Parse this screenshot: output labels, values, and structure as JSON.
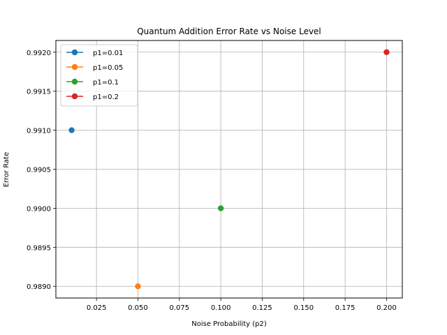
{
  "chart_data": {
    "type": "scatter",
    "title": "Quantum Addition Error Rate vs Noise Level",
    "xlabel": "Noise Probability (p2)",
    "ylabel": "Error Rate",
    "xlim": [
      0.0005,
      0.2095
    ],
    "ylim": [
      0.98885,
      0.99215
    ],
    "xticks": [
      0.025,
      0.05,
      0.075,
      0.1,
      0.125,
      0.15,
      0.175,
      0.2
    ],
    "xtick_labels": [
      "0.025",
      "0.050",
      "0.075",
      "0.100",
      "0.125",
      "0.150",
      "0.175",
      "0.200"
    ],
    "yticks": [
      0.989,
      0.9895,
      0.99,
      0.9905,
      0.991,
      0.9915,
      0.992
    ],
    "ytick_labels": [
      "0.9890",
      "0.9895",
      "0.9900",
      "0.9905",
      "0.9910",
      "0.9915",
      "0.9920"
    ],
    "grid": true,
    "legend_position": "top-left",
    "series": [
      {
        "name": "p1=0.01",
        "color": "#1f77b4",
        "x": [
          0.01
        ],
        "y": [
          0.991
        ]
      },
      {
        "name": "p1=0.05",
        "color": "#ff7f0e",
        "x": [
          0.05
        ],
        "y": [
          0.989
        ]
      },
      {
        "name": "p1=0.1",
        "color": "#2ca02c",
        "x": [
          0.1
        ],
        "y": [
          0.99
        ]
      },
      {
        "name": "p1=0.2",
        "color": "#d62728",
        "x": [
          0.2
        ],
        "y": [
          0.992
        ]
      }
    ]
  }
}
